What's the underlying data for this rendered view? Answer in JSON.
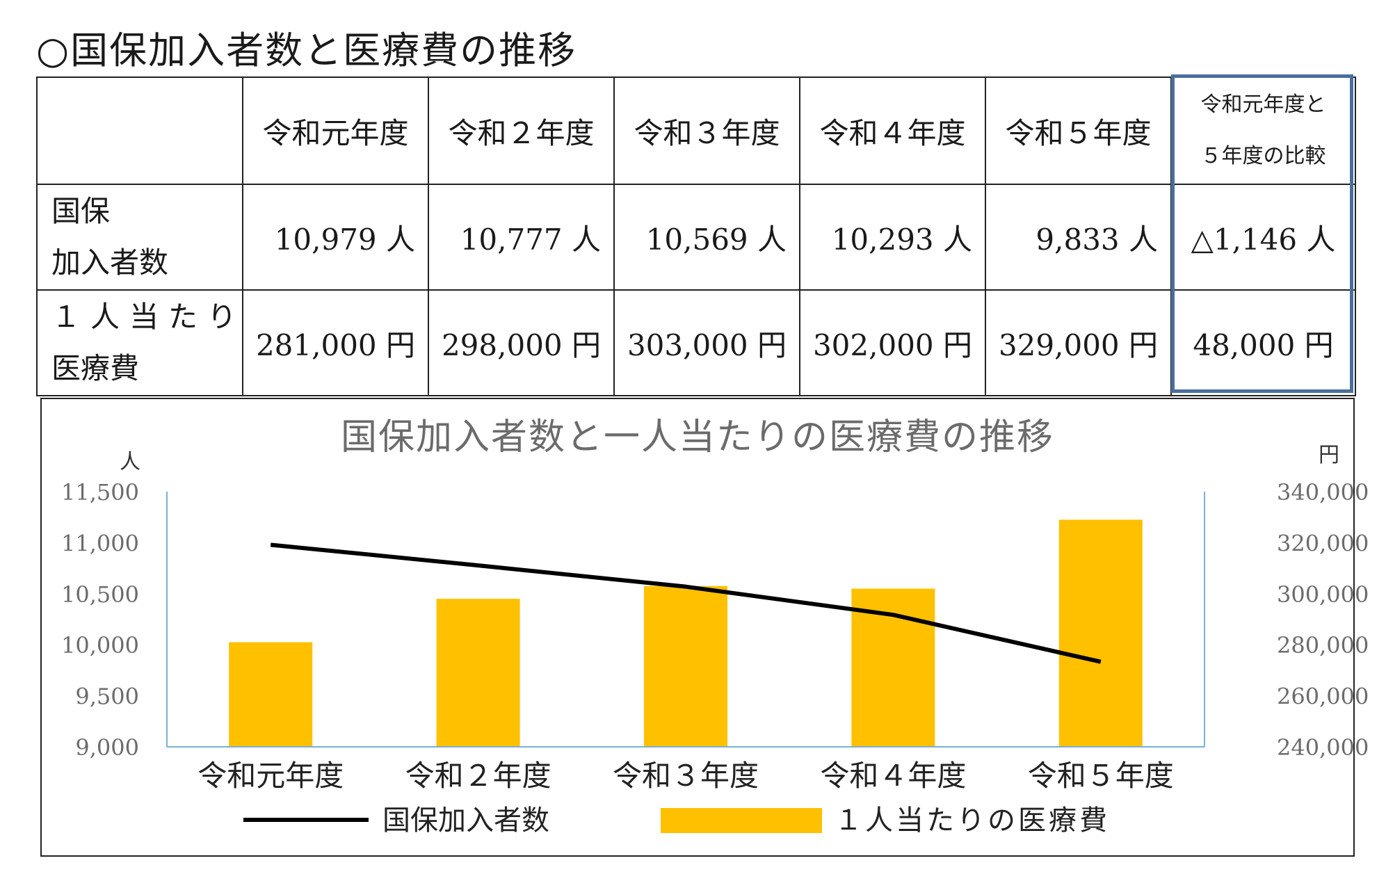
{
  "page_title": "○国保加入者数と医療費の推移",
  "table": {
    "header": {
      "corner": "",
      "years": [
        "令和元年度",
        "令和２年度",
        "令和３年度",
        "令和４年度",
        "令和５年度"
      ],
      "compare_line1": "令和元年度と",
      "compare_line2": "５年度の比較"
    },
    "rows": [
      {
        "label_line1": "国保",
        "label_line2": "加入者数",
        "cells": [
          "10,979 人",
          "10,777 人",
          "10,569 人",
          "10,293 人",
          "9,833 人"
        ],
        "compare": "△1,146 人"
      },
      {
        "label_line1": "１人当たり",
        "label_line2": "医療費",
        "cells": [
          "281,000 円",
          "298,000 円",
          "303,000 円",
          "302,000 円",
          "329,000 円"
        ],
        "compare": "48,000 円"
      }
    ]
  },
  "chart_data": {
    "type": "bar",
    "title": "国保加入者数と一人当たりの医療費の推移",
    "categories": [
      "令和元年度",
      "令和２年度",
      "令和３年度",
      "令和４年度",
      "令和５年度"
    ],
    "y_left_unit": "人",
    "y_right_unit": "円",
    "y_left_lim": [
      9000,
      11500
    ],
    "y_left_ticks": [
      "11,500",
      "11,000",
      "10,500",
      "10,000",
      "9,500",
      "9,000"
    ],
    "y_right_lim": [
      240000,
      340000
    ],
    "y_right_ticks": [
      "340,000",
      "320,000",
      "300,000",
      "280,000",
      "260,000",
      "240,000"
    ],
    "grid": false,
    "legend_position": "bottom",
    "series": [
      {
        "name": "国保加入者数",
        "type": "line",
        "axis": "left",
        "color": "#000000",
        "values": [
          10979,
          10777,
          10569,
          10293,
          9833
        ]
      },
      {
        "name": "１人当たりの医療費",
        "type": "bar",
        "axis": "right",
        "color": "#ffc000",
        "values": [
          281000,
          298000,
          303000,
          302000,
          329000
        ]
      }
    ]
  }
}
